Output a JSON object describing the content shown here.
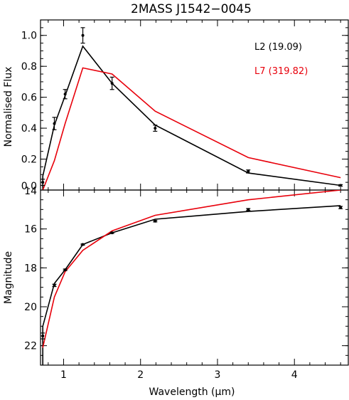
{
  "colors": {
    "black": "#000000",
    "red": "#e8000b"
  },
  "chart_data": [
    {
      "type": "line",
      "title": "2MASS J1542−0045",
      "xlabel": "",
      "ylabel": "Normalised Flux",
      "xlim": [
        0.7,
        4.7
      ],
      "ylim": [
        0.0,
        1.1
      ],
      "xticks": [
        1,
        2,
        3,
        4
      ],
      "xtick_labels": [
        "",
        "",
        "",
        ""
      ],
      "yticks": [
        0.0,
        0.2,
        0.4,
        0.6,
        0.8,
        1.0
      ],
      "ytick_labels": [
        "0.0",
        "0.2",
        "0.4",
        "0.6",
        "0.8",
        "1.0"
      ],
      "legend": [
        {
          "label": "L2 (19.09)",
          "color": "#000000"
        },
        {
          "label": "L7 (319.82)",
          "color": "#e8000b"
        }
      ],
      "observed": {
        "x": [
          0.73,
          0.88,
          1.02,
          1.25,
          1.63,
          2.19,
          3.4,
          4.6
        ],
        "y": [
          0.05,
          0.43,
          0.62,
          1.0,
          0.69,
          0.4,
          0.12,
          0.03
        ],
        "err": [
          0.02,
          0.04,
          0.03,
          0.05,
          0.04,
          0.02,
          0.01,
          0.005
        ]
      },
      "series": [
        {
          "name": "L2 (19.09)",
          "color": "#000000",
          "x": [
            0.73,
            0.73,
            0.88,
            1.02,
            1.25,
            1.63,
            2.19,
            3.4,
            4.6
          ],
          "y": [
            0.0,
            0.09,
            0.42,
            0.61,
            0.93,
            0.69,
            0.42,
            0.11,
            0.03
          ]
        },
        {
          "name": "L7 (319.82)",
          "color": "#e8000b",
          "x": [
            0.73,
            0.88,
            1.02,
            1.25,
            1.63,
            2.19,
            3.4,
            4.6
          ],
          "y": [
            0.0,
            0.19,
            0.43,
            0.79,
            0.75,
            0.51,
            0.21,
            0.08
          ]
        }
      ]
    },
    {
      "type": "line",
      "title": "",
      "xlabel": "Wavelength (μm)",
      "ylabel": "Magnitude",
      "xlim": [
        0.7,
        4.7
      ],
      "ylim": [
        23.0,
        14.0
      ],
      "xticks": [
        1,
        2,
        3,
        4
      ],
      "xtick_labels": [
        "1",
        "2",
        "3",
        "4"
      ],
      "yticks": [
        14,
        16,
        18,
        20,
        22
      ],
      "ytick_labels": [
        "14",
        "16",
        "18",
        "20",
        "22"
      ],
      "observed": {
        "x": [
          0.73,
          0.88,
          1.02,
          1.25,
          1.63,
          2.19,
          3.4,
          4.6
        ],
        "y": [
          21.5,
          18.9,
          18.1,
          16.8,
          16.2,
          15.6,
          15.0,
          14.9
        ],
        "err": [
          0.15,
          0.06,
          0.04,
          0.03,
          0.03,
          0.04,
          0.05,
          0.06
        ]
      },
      "series": [
        {
          "name": "L2 (19.09)",
          "color": "#000000",
          "x": [
            0.73,
            0.73,
            0.88,
            1.02,
            1.25,
            1.63,
            2.19,
            3.4,
            4.6
          ],
          "y": [
            23.0,
            21.0,
            18.8,
            18.1,
            16.8,
            16.2,
            15.5,
            15.1,
            14.8
          ]
        },
        {
          "name": "L7 (319.82)",
          "color": "#e8000b",
          "x": [
            0.73,
            0.88,
            1.02,
            1.25,
            1.63,
            2.19,
            3.4,
            4.6
          ],
          "y": [
            22.1,
            19.5,
            18.2,
            17.1,
            16.1,
            15.3,
            14.5,
            14.0
          ]
        }
      ]
    }
  ]
}
